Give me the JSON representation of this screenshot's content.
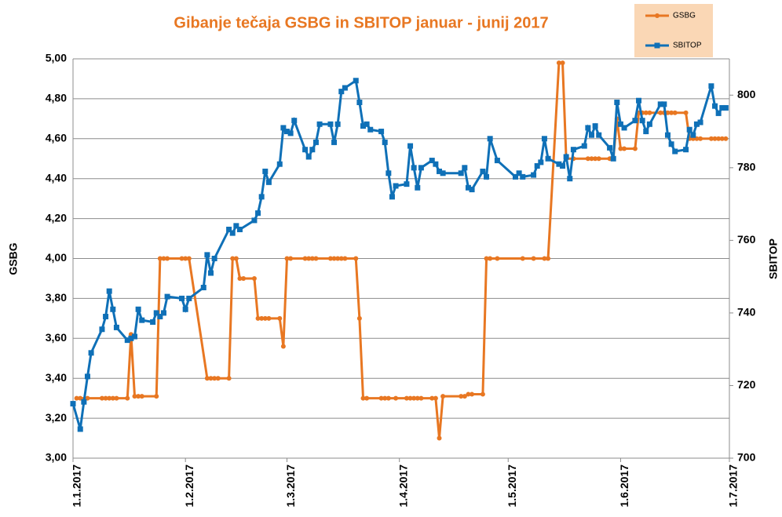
{
  "chart_data": {
    "type": "line",
    "title": "Gibanje tečaja GSBG in SBITOP januar - junij  2017",
    "y_label": "GSBG",
    "y2_label": "SBITOP",
    "xlim": [
      "2017-01-01",
      "2017-07-01"
    ],
    "xticks": [
      {
        "value": "2017-01-01",
        "label": "1.1.2017"
      },
      {
        "value": "2017-02-01",
        "label": "1.2.2017"
      },
      {
        "value": "2017-03-01",
        "label": "1.3.2017"
      },
      {
        "value": "2017-04-01",
        "label": "1.4.2017"
      },
      {
        "value": "2017-05-01",
        "label": "1.5.2017"
      },
      {
        "value": "2017-06-01",
        "label": "1.6.2017"
      },
      {
        "value": "2017-07-01",
        "label": "1.7.2017"
      }
    ],
    "ylim": [
      3,
      5
    ],
    "yticks": [
      {
        "value": 3,
        "label": "3,00"
      },
      {
        "value": 3.2,
        "label": "3,20"
      },
      {
        "value": 3.4,
        "label": "3,40"
      },
      {
        "value": 3.6,
        "label": "3,60"
      },
      {
        "value": 3.8,
        "label": "3,80"
      },
      {
        "value": 4,
        "label": "4,00"
      },
      {
        "value": 4.2,
        "label": "4,20"
      },
      {
        "value": 4.4,
        "label": "4,40"
      },
      {
        "value": 4.6,
        "label": "4,60"
      },
      {
        "value": 4.8,
        "label": "4,80"
      },
      {
        "value": 5,
        "label": "5,00"
      }
    ],
    "y2lim": [
      700,
      810
    ],
    "y2ticks": [
      700,
      720,
      740,
      760,
      780,
      800
    ],
    "grid": true,
    "legend": "top-right",
    "series": [
      {
        "name": "GSBG",
        "color": "#e87722",
        "marker": "circle",
        "x": [
          "2017-01-02",
          "2017-01-03",
          "2017-01-05",
          "2017-01-09",
          "2017-01-10",
          "2017-01-11",
          "2017-01-12",
          "2017-01-13",
          "2017-01-16",
          "2017-01-17",
          "2017-01-18",
          "2017-01-19",
          "2017-01-20",
          "2017-01-24",
          "2017-01-25",
          "2017-01-26",
          "2017-01-27",
          "2017-01-31",
          "2017-02-01",
          "2017-02-02",
          "2017-02-07",
          "2017-02-08",
          "2017-02-09",
          "2017-02-10",
          "2017-02-13",
          "2017-02-14",
          "2017-02-15",
          "2017-02-16",
          "2017-02-17",
          "2017-02-20",
          "2017-02-21",
          "2017-02-22",
          "2017-02-23",
          "2017-02-24",
          "2017-02-27",
          "2017-02-28",
          "2017-03-01",
          "2017-03-02",
          "2017-03-06",
          "2017-03-07",
          "2017-03-08",
          "2017-03-09",
          "2017-03-13",
          "2017-03-14",
          "2017-03-15",
          "2017-03-16",
          "2017-03-17",
          "2017-03-20",
          "2017-03-21",
          "2017-03-22",
          "2017-03-23",
          "2017-03-27",
          "2017-03-28",
          "2017-03-29",
          "2017-03-31",
          "2017-04-03",
          "2017-04-04",
          "2017-04-05",
          "2017-04-06",
          "2017-04-07",
          "2017-04-10",
          "2017-04-11",
          "2017-04-12",
          "2017-04-13",
          "2017-04-18",
          "2017-04-19",
          "2017-04-20",
          "2017-04-21",
          "2017-04-24",
          "2017-04-25",
          "2017-04-26",
          "2017-04-28",
          "2017-05-05",
          "2017-05-08",
          "2017-05-11",
          "2017-05-12",
          "2017-05-15",
          "2017-05-16",
          "2017-05-17",
          "2017-05-19",
          "2017-05-23",
          "2017-05-24",
          "2017-05-25",
          "2017-05-26",
          "2017-05-29",
          "2017-05-30",
          "2017-05-31",
          "2017-06-01",
          "2017-06-02",
          "2017-06-05",
          "2017-06-06",
          "2017-06-07",
          "2017-06-08",
          "2017-06-09",
          "2017-06-12",
          "2017-06-13",
          "2017-06-14",
          "2017-06-15",
          "2017-06-16",
          "2017-06-19",
          "2017-06-20",
          "2017-06-21",
          "2017-06-22",
          "2017-06-23",
          "2017-06-26",
          "2017-06-27",
          "2017-06-28",
          "2017-06-29",
          "2017-06-30"
        ],
        "values": [
          3.3,
          3.3,
          3.3,
          3.3,
          3.3,
          3.3,
          3.3,
          3.3,
          3.3,
          3.62,
          3.31,
          3.31,
          3.31,
          3.31,
          4.0,
          4.0,
          4.0,
          4.0,
          4.0,
          4.0,
          3.4,
          3.4,
          3.4,
          3.4,
          3.4,
          4.0,
          4.0,
          3.9,
          3.9,
          3.9,
          3.7,
          3.7,
          3.7,
          3.7,
          3.7,
          3.56,
          4.0,
          4.0,
          4.0,
          4.0,
          4.0,
          4.0,
          4.0,
          4.0,
          4.0,
          4.0,
          4.0,
          4.0,
          3.7,
          3.3,
          3.3,
          3.3,
          3.3,
          3.3,
          3.3,
          3.3,
          3.3,
          3.3,
          3.3,
          3.3,
          3.3,
          3.3,
          3.1,
          3.31,
          3.31,
          3.31,
          3.32,
          3.32,
          3.32,
          4.0,
          4.0,
          4.0,
          4.0,
          4.0,
          4.0,
          4.0,
          4.98,
          4.98,
          4.5,
          4.5,
          4.5,
          4.5,
          4.5,
          4.5,
          4.5,
          4.5,
          4.7,
          4.55,
          4.55,
          4.55,
          4.73,
          4.73,
          4.73,
          4.73,
          4.73,
          4.73,
          4.73,
          4.73,
          4.73,
          4.73,
          4.6,
          4.6,
          4.6,
          4.6,
          4.6,
          4.6,
          4.6,
          4.6,
          4.6
        ]
      },
      {
        "name": "SBITOP",
        "color": "#0f70b7",
        "marker": "square",
        "axis": "y2",
        "x": [
          "2017-01-01",
          "2017-01-03",
          "2017-01-04",
          "2017-01-05",
          "2017-01-06",
          "2017-01-09",
          "2017-01-10",
          "2017-01-11",
          "2017-01-12",
          "2017-01-13",
          "2017-01-16",
          "2017-01-17",
          "2017-01-18",
          "2017-01-19",
          "2017-01-20",
          "2017-01-23",
          "2017-01-24",
          "2017-01-25",
          "2017-01-26",
          "2017-01-27",
          "2017-01-31",
          "2017-02-01",
          "2017-02-02",
          "2017-02-06",
          "2017-02-07",
          "2017-02-08",
          "2017-02-09",
          "2017-02-13",
          "2017-02-14",
          "2017-02-15",
          "2017-02-16",
          "2017-02-20",
          "2017-02-21",
          "2017-02-22",
          "2017-02-23",
          "2017-02-24",
          "2017-02-27",
          "2017-02-28",
          "2017-03-01",
          "2017-03-02",
          "2017-03-03",
          "2017-03-06",
          "2017-03-07",
          "2017-03-08",
          "2017-03-09",
          "2017-03-10",
          "2017-03-13",
          "2017-03-14",
          "2017-03-15",
          "2017-03-16",
          "2017-03-17",
          "2017-03-20",
          "2017-03-21",
          "2017-03-22",
          "2017-03-23",
          "2017-03-24",
          "2017-03-27",
          "2017-03-28",
          "2017-03-29",
          "2017-03-30",
          "2017-03-31",
          "2017-04-03",
          "2017-04-04",
          "2017-04-05",
          "2017-04-06",
          "2017-04-07",
          "2017-04-10",
          "2017-04-11",
          "2017-04-12",
          "2017-04-13",
          "2017-04-18",
          "2017-04-19",
          "2017-04-20",
          "2017-04-21",
          "2017-04-24",
          "2017-04-25",
          "2017-04-26",
          "2017-04-28",
          "2017-05-03",
          "2017-05-04",
          "2017-05-05",
          "2017-05-08",
          "2017-05-09",
          "2017-05-10",
          "2017-05-11",
          "2017-05-12",
          "2017-05-15",
          "2017-05-16",
          "2017-05-17",
          "2017-05-18",
          "2017-05-19",
          "2017-05-22",
          "2017-05-23",
          "2017-05-24",
          "2017-05-25",
          "2017-05-26",
          "2017-05-29",
          "2017-05-30",
          "2017-05-31",
          "2017-06-01",
          "2017-06-02",
          "2017-06-05",
          "2017-06-06",
          "2017-06-07",
          "2017-06-08",
          "2017-06-09",
          "2017-06-12",
          "2017-06-13",
          "2017-06-14",
          "2017-06-15",
          "2017-06-16",
          "2017-06-19",
          "2017-06-20",
          "2017-06-21",
          "2017-06-22",
          "2017-06-23",
          "2017-06-26",
          "2017-06-27",
          "2017-06-28",
          "2017-06-29",
          "2017-06-30"
        ],
        "values": [
          715,
          708,
          715.5,
          722.5,
          729,
          735.5,
          739,
          746,
          741,
          736,
          732.5,
          733,
          733.5,
          741,
          738,
          737.5,
          740,
          739,
          740,
          744.5,
          744,
          741,
          744,
          747,
          756,
          751,
          755,
          763,
          762,
          764,
          763,
          765.5,
          767.5,
          772,
          779,
          776,
          781,
          791,
          790,
          789.5,
          793,
          785,
          783,
          785,
          787,
          792,
          792,
          787,
          792,
          801,
          802,
          804,
          798,
          791.5,
          792,
          790.5,
          790,
          787,
          778.5,
          772,
          775,
          775.5,
          786,
          780,
          774.5,
          780,
          782,
          781,
          779,
          778.5,
          778.5,
          780,
          774.5,
          774,
          779,
          777.5,
          788,
          782,
          777.5,
          778.5,
          777.5,
          778,
          780.5,
          781.5,
          788,
          782.5,
          781,
          780.5,
          783,
          777,
          785,
          786,
          791,
          789,
          791.5,
          789,
          785.5,
          782.5,
          798,
          792,
          791,
          793,
          798.5,
          793,
          790,
          792,
          797.5,
          797.5,
          789,
          786.5,
          784.5,
          785,
          790.5,
          789,
          792,
          792.5,
          802.5,
          797,
          795,
          796.5,
          796.5
        ]
      }
    ]
  }
}
